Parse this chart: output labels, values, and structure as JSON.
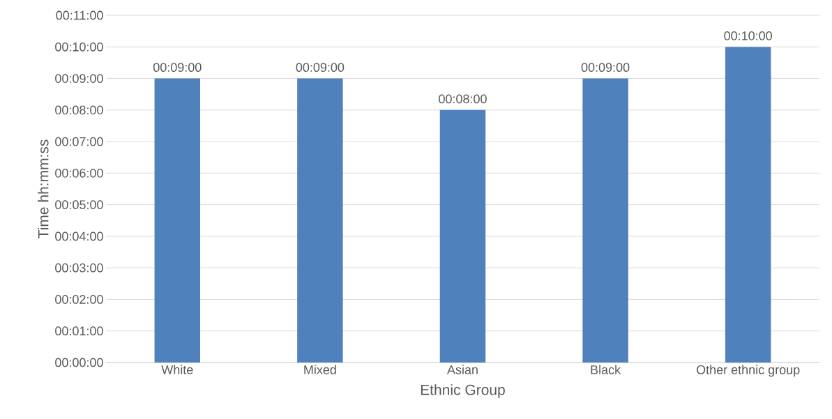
{
  "chart_data": {
    "type": "bar",
    "xlabel": "Ethnic Group",
    "ylabel": "Time hh:mm:ss",
    "categories": [
      "White",
      "Mixed",
      "Asian",
      "Black",
      "Other ethnic group"
    ],
    "values": [
      9,
      9,
      8,
      9,
      10
    ],
    "value_labels": [
      "00:09:00",
      "00:09:00",
      "00:08:00",
      "00:09:00",
      "00:10:00"
    ],
    "color": "#4f81bd",
    "ylim": [
      0,
      11
    ],
    "yticks": [
      {
        "value": 0,
        "label": "00:00:00"
      },
      {
        "value": 1,
        "label": "00:01:00"
      },
      {
        "value": 2,
        "label": "00:02:00"
      },
      {
        "value": 3,
        "label": "00:03:00"
      },
      {
        "value": 4,
        "label": "00:04:00"
      },
      {
        "value": 5,
        "label": "00:05:00"
      },
      {
        "value": 6,
        "label": "00:06:00"
      },
      {
        "value": 7,
        "label": "00:07:00"
      },
      {
        "value": 8,
        "label": "00:08:00"
      },
      {
        "value": 9,
        "label": "00:09:00"
      },
      {
        "value": 10,
        "label": "00:10:00"
      },
      {
        "value": 11,
        "label": "00:11:00"
      }
    ],
    "grid": "y"
  }
}
